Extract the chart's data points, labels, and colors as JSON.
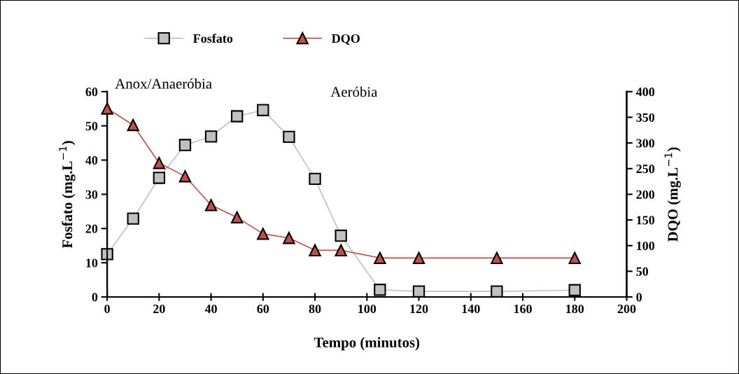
{
  "chart_data": {
    "type": "line",
    "xlabel": "Tempo (minutos)",
    "ylabel": "Fosfato (mg.L$^{−1}$)",
    "y2label": "DQO (mg.L$^{−1}$)",
    "x": [
      0,
      10,
      20,
      30,
      40,
      50,
      60,
      70,
      80,
      90,
      105,
      120,
      150,
      180
    ],
    "series": [
      {
        "name": "Fosfato",
        "color": "#c0c0c0",
        "marker": "square",
        "values": [
          12.5,
          22.9,
          34.8,
          44.4,
          46.9,
          52.8,
          54.6,
          46.8,
          34.5,
          17.9,
          2.1,
          1.6,
          1.6,
          2.0
        ]
      },
      {
        "name": "DQO",
        "color": "#c0504d",
        "marker": "triangle",
        "axis": "y2",
        "values": [
          367,
          335,
          261,
          235,
          179,
          155,
          123,
          115,
          91,
          91,
          76,
          76,
          76,
          76
        ]
      }
    ],
    "xlim": [
      0,
      200
    ],
    "xticks": [
      0,
      20,
      40,
      60,
      80,
      100,
      120,
      140,
      160,
      180,
      200
    ],
    "ylim": [
      0,
      60
    ],
    "yticks": [
      0,
      10,
      20,
      30,
      40,
      50,
      60
    ],
    "y2lim": [
      0,
      400
    ],
    "y2ticks": [
      0,
      50,
      100,
      150,
      200,
      250,
      300,
      350,
      400
    ],
    "annotations": [
      "Anox/Anaeróbia",
      "Aeróbia"
    ],
    "legend": "top",
    "grid": false,
    "line_style": "solid"
  }
}
